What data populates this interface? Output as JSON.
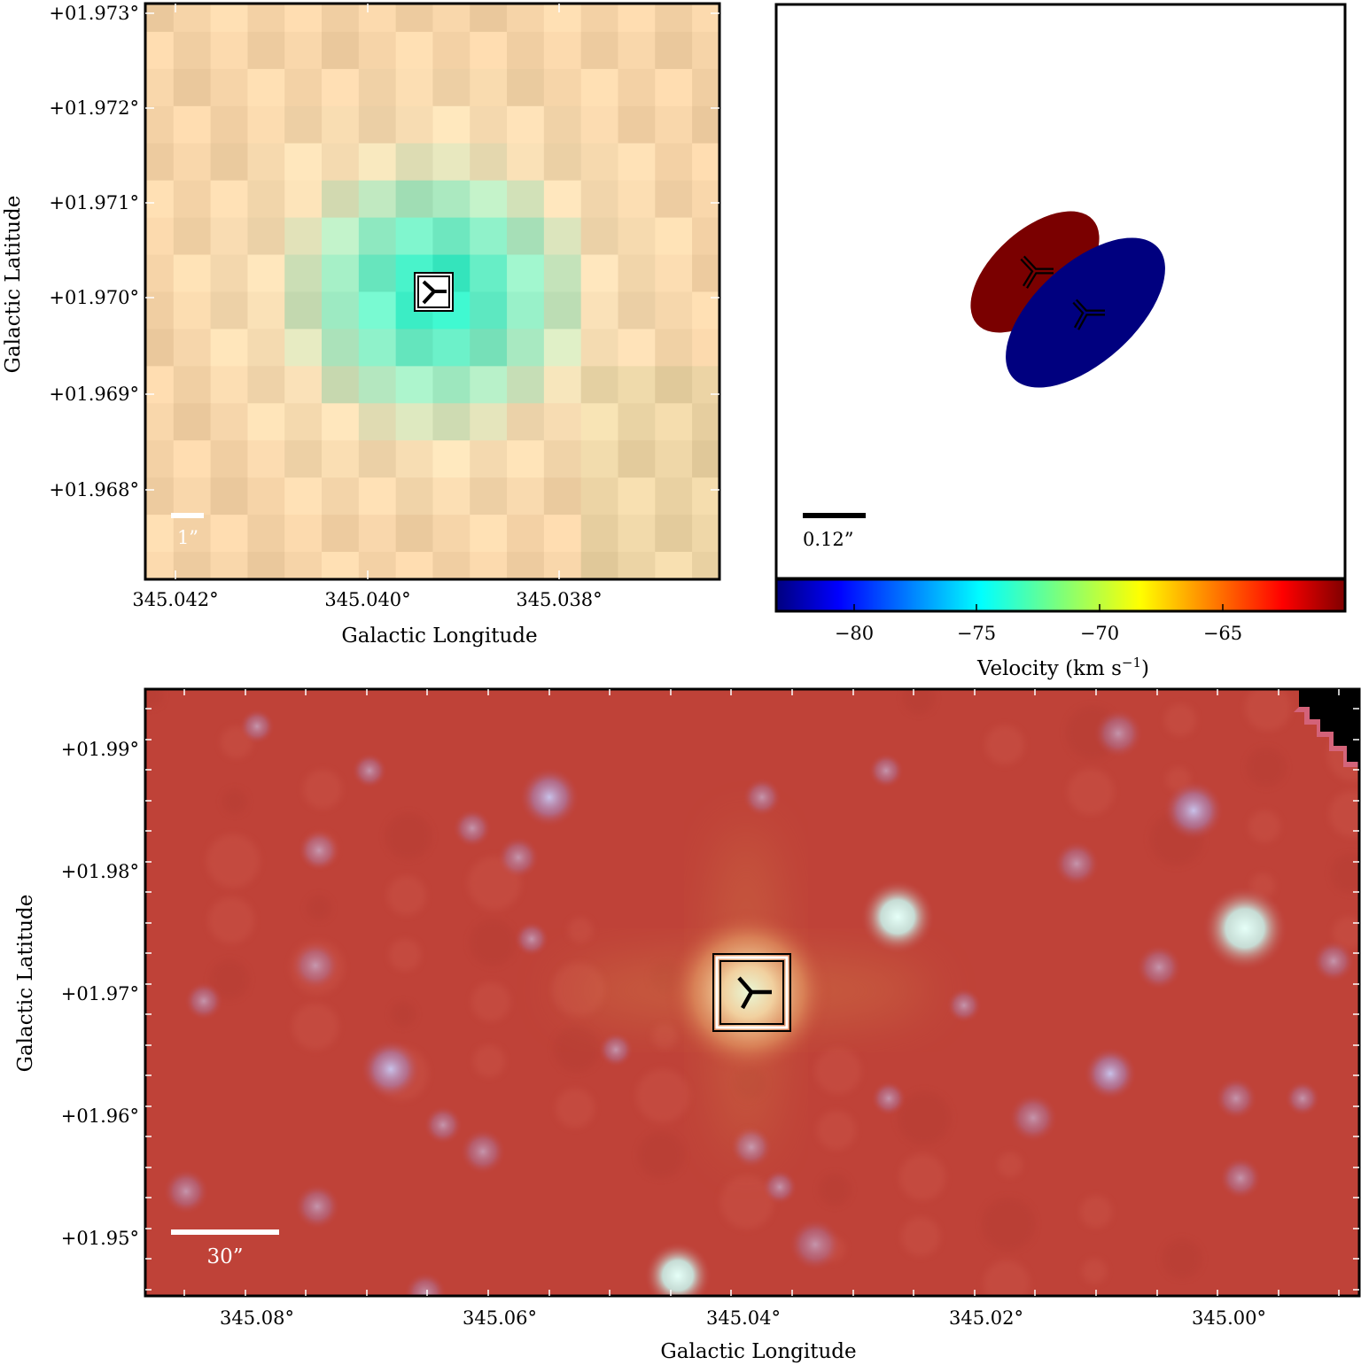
{
  "panel_a": {
    "xlabel": "Galactic Longitude",
    "ylabel": "Galactic Latitude",
    "x_ticks": [
      "345.042°",
      "345.040°",
      "345.038°"
    ],
    "y_ticks": [
      "+01.973°",
      "+01.972°",
      "+01.971°",
      "+01.970°",
      "+01.969°",
      "+01.968°"
    ],
    "scalebar_label": "1”"
  },
  "panel_b": {
    "scalebar_label": "0.12”",
    "colorbar_label": "Velocity (km s",
    "colorbar_label_sup": "−1",
    "colorbar_label_close": ")",
    "colorbar_ticks": [
      "−80",
      "−75",
      "−70",
      "−65"
    ],
    "component_colors": [
      "#7a0000",
      "#00007f"
    ]
  },
  "panel_c": {
    "xlabel": "Galactic Longitude",
    "ylabel": "Galactic Latitude",
    "x_ticks": [
      "345.08°",
      "345.06°",
      "345.04°",
      "345.02°",
      "345.00°"
    ],
    "y_ticks": [
      "+01.99°",
      "+01.98°",
      "+01.97°",
      "+01.96°",
      "+01.95°"
    ],
    "scalebar_label": "30”"
  },
  "chart_data": [
    {
      "type": "heatmap",
      "xlabel": "Galactic Longitude",
      "ylabel": "Galactic Latitude",
      "x_ticks": [
        345.042,
        345.04,
        345.038
      ],
      "y_ticks": [
        1.973,
        1.972,
        1.971,
        1.97,
        1.969,
        1.968
      ],
      "xlim": [
        345.0424,
        345.0364
      ],
      "ylim": [
        1.9671,
        1.9731
      ],
      "marker": {
        "l": 345.0398,
        "b": 1.97
      },
      "scalebar": "1”"
    },
    {
      "type": "scatter",
      "series": [
        {
          "velocity": -60,
          "color": "#7a0000"
        },
        {
          "velocity": -82,
          "color": "#00007f"
        }
      ],
      "colorbar": {
        "label": "Velocity (km s⁻¹)",
        "range": [
          -83,
          -59
        ],
        "ticks": [
          -80,
          -75,
          -70,
          -65
        ]
      },
      "scalebar": "0.12”"
    },
    {
      "type": "heatmap",
      "xlabel": "Galactic Longitude",
      "ylabel": "Galactic Latitude",
      "x_ticks": [
        345.08,
        345.06,
        345.04,
        345.02,
        345.0
      ],
      "y_ticks": [
        1.99,
        1.98,
        1.97,
        1.96,
        1.95
      ],
      "xlim": [
        345.0911,
        344.9911
      ],
      "ylim": [
        1.9454,
        1.9949
      ],
      "marker": {
        "l": 345.04,
        "b": 1.97
      },
      "scalebar": "30”"
    }
  ]
}
